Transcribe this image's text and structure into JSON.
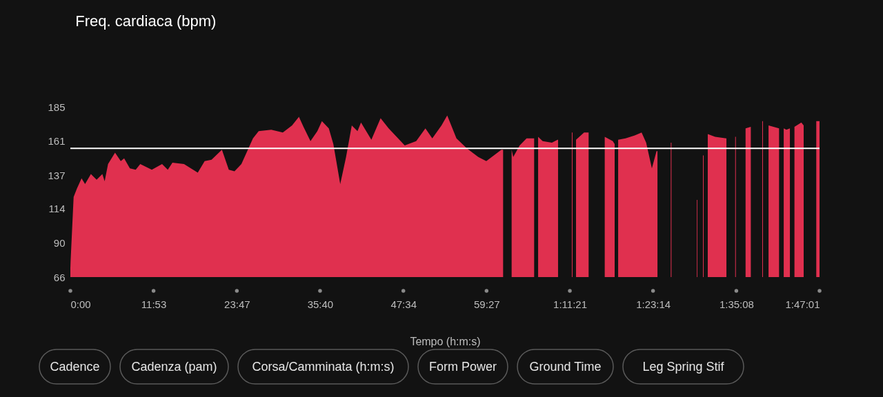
{
  "chart_data": {
    "type": "area",
    "title": "Freq. cardiaca (bpm)",
    "xlabel": "Tempo (h:m:s)",
    "x": [
      0,
      2,
      28,
      57,
      96,
      126,
      176,
      225,
      274,
      294,
      323,
      383,
      432,
      461,
      510,
      560,
      599,
      698,
      786,
      835,
      875,
      974,
      1092,
      1151,
      1210,
      1299,
      1358,
      1407,
      1466,
      1565,
      1614,
      1722,
      1821,
      1900,
      1959,
      1998,
      2058,
      2117,
      2156,
      2215,
      2254,
      2313,
      2363,
      2412,
      2461,
      2491,
      2580,
      2659,
      2728,
      2866,
      2964,
      3043,
      3102,
      3181,
      3230,
      3309,
      3398,
      3496,
      3565,
      3694,
      3709,
      3720,
      3782,
      3796,
      3851,
      3910,
      3969,
      3975,
      3990,
      4009,
      4048,
      4127,
      4176,
      4180,
      4190,
      4298,
      4304,
      4310,
      4334,
      4403,
      4442,
      4455,
      4580,
      4649,
      4665,
      4680,
      4695,
      4758,
      4837,
      4896,
      4935,
      4984,
      5024,
      5032,
      5050,
      5146,
      5152,
      5160,
      5369,
      5374,
      5380,
      5422,
      5428,
      5440,
      5463,
      5526,
      5621,
      5623,
      5640,
      5698,
      5704,
      5720,
      5787,
      5832,
      5850,
      5930,
      5936,
      5950,
      5984,
      6074,
      6090,
      6114,
      6137,
      6167,
      6180,
      6206,
      6265,
      6285,
      6300,
      6393,
      6421
    ],
    "series": [
      {
        "color": "#e0304f",
        "values": [
          72,
          77,
          122,
          128,
          135,
          131,
          138,
          134,
          138,
          133,
          145,
          153,
          147,
          149,
          142,
          141,
          145,
          141,
          145,
          141,
          146,
          145,
          139,
          147,
          148,
          155,
          141,
          140,
          145,
          163,
          168,
          169,
          167,
          172,
          178,
          171,
          161,
          168,
          175,
          170,
          159,
          131,
          150,
          172,
          168,
          174,
          162,
          177,
          170,
          158,
          161,
          170,
          163,
          172,
          179,
          163,
          156,
          150,
          147,
          155,
          155,
          null,
          155,
          150,
          158,
          163,
          163,
          163,
          null,
          164,
          161,
          160,
          162,
          162,
          null,
          167,
          167,
          null,
          162,
          167,
          167,
          null,
          164,
          161,
          159,
          null,
          162,
          163,
          165,
          167,
          160,
          142,
          154,
          154,
          null,
          160,
          160,
          null,
          120,
          120,
          null,
          151,
          151,
          null,
          166,
          164,
          163,
          163,
          null,
          164,
          164,
          null,
          170,
          171,
          null,
          175,
          175,
          null,
          172,
          170,
          null,
          170,
          169,
          170,
          null,
          171,
          174,
          172,
          null,
          175,
          175
        ]
      }
    ],
    "xlim": [
      0,
      6421
    ],
    "ylim": [
      66,
      185
    ],
    "xticks": [
      {
        "value": 0,
        "label": "0:00"
      },
      {
        "value": 713,
        "label": "11:53"
      },
      {
        "value": 1427,
        "label": "23:47"
      },
      {
        "value": 2140,
        "label": "35:40"
      },
      {
        "value": 2854,
        "label": "47:34"
      },
      {
        "value": 3567,
        "label": "59:27"
      },
      {
        "value": 4281,
        "label": "1:11:21"
      },
      {
        "value": 4994,
        "label": "1:23:14"
      },
      {
        "value": 5708,
        "label": "1:35:08"
      },
      {
        "value": 6421,
        "label": "1:47:01"
      }
    ],
    "yticks": [
      66,
      90,
      114,
      137,
      161,
      185
    ],
    "ref_lines": [
      {
        "axis": "y",
        "value": 156,
        "color": "#ffffff"
      }
    ],
    "grid": false,
    "annotations": [
      "Cadence",
      "Cadenza (pam)",
      "Corsa/Camminata (h:m:s)",
      "Form Power",
      "Ground Time",
      "Leg Spring Stif"
    ]
  }
}
